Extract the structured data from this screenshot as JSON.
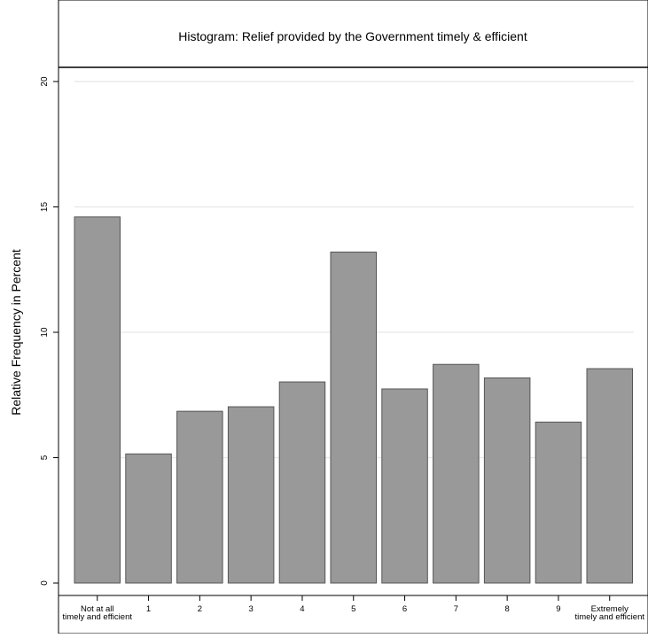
{
  "chart_data": {
    "type": "bar",
    "title": "Histogram: Relief provided by the Government timely & efficient",
    "xlabel": "",
    "ylabel": "Relative Frequency in Percent",
    "categories": [
      [
        "Not at all",
        "timely and efficient"
      ],
      [
        "1"
      ],
      [
        "2"
      ],
      [
        "3"
      ],
      [
        "4"
      ],
      [
        "5"
      ],
      [
        "6"
      ],
      [
        "7"
      ],
      [
        "8"
      ],
      [
        "9"
      ],
      [
        "Extremely",
        "timely and efficient"
      ]
    ],
    "values": [
      14.6,
      5.15,
      6.85,
      7.03,
      8.02,
      13.2,
      7.74,
      8.72,
      8.18,
      6.42,
      8.55
    ],
    "ylim": [
      0,
      20
    ],
    "yticks": [
      0,
      5,
      10,
      15,
      20
    ],
    "grid": true,
    "colors": {
      "bar_fill": "#999999",
      "bar_stroke": "#555555",
      "grid": "#e6e6e6",
      "frame": "#000000"
    }
  }
}
